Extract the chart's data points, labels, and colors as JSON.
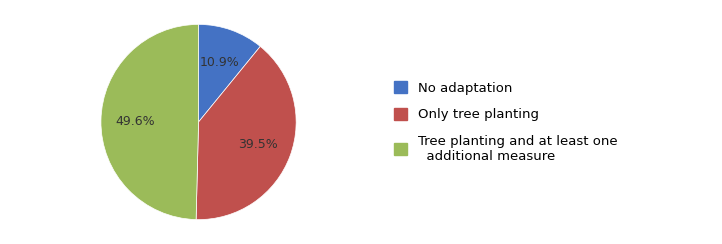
{
  "labels": [
    "No adaptation",
    "Only tree planting",
    "Tree planting and at least one\nadditional measure"
  ],
  "values": [
    10.9,
    39.5,
    49.6
  ],
  "colors": [
    "#4472C4",
    "#C0504D",
    "#9BBB59"
  ],
  "startangle": 90,
  "figsize": [
    7.22,
    2.44
  ],
  "dpi": 100,
  "legend_labels": [
    "No adaptation",
    "Only tree planting",
    "Tree planting and at least one\n  additional measure"
  ],
  "autopct_fontsize": 9,
  "legend_fontsize": 9.5,
  "pct_text_color": "#333333",
  "background_color": "#ffffff"
}
